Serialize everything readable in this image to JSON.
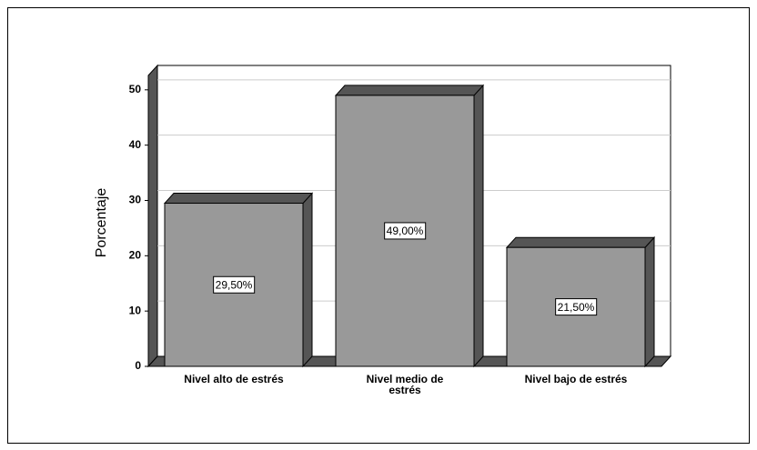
{
  "chart_data": {
    "type": "bar3d",
    "categories": [
      "Nivel alto de estrés",
      "Nivel medio de estrés",
      "Nivel bajo de estrés"
    ],
    "values": [
      29.5,
      49,
      21.5
    ],
    "value_labels": [
      "29,50%",
      "49,00%",
      "21,50%"
    ],
    "y_label": "Porcentaje",
    "color": "#999999",
    "ylim": [
      0,
      52.6
    ],
    "yticks": [
      0,
      10,
      20,
      30,
      40,
      50
    ],
    "grid": true
  }
}
